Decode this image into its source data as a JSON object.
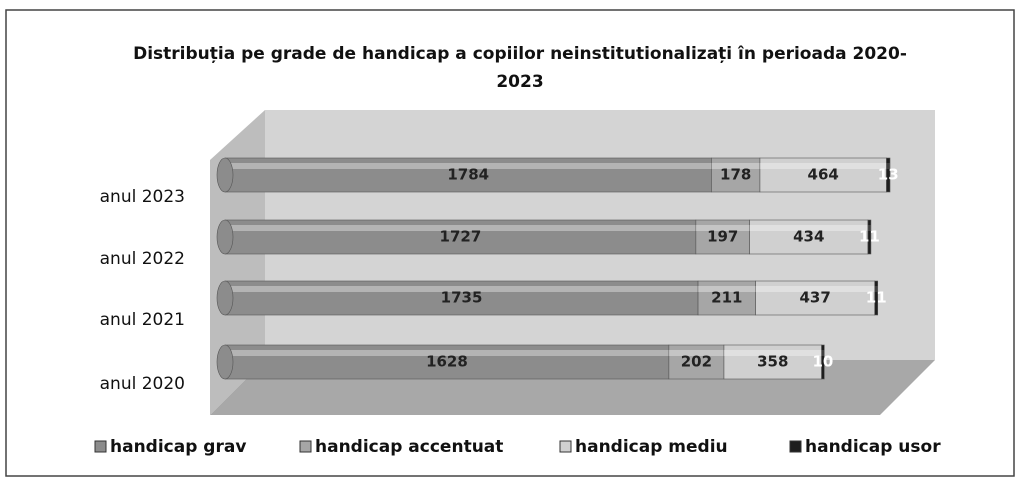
{
  "chart_data": {
    "type": "bar",
    "orientation": "horizontal",
    "stacked": true,
    "title": "Distribuția pe grade de handicap a copiilor neinstitutionalizați în perioada 2020-2023",
    "categories": [
      "anul 2023",
      "anul 2022",
      "anul 2021",
      "anul 2020"
    ],
    "series": [
      {
        "name": "handicap grav",
        "color": "#8c8c8c",
        "values": [
          1784,
          1727,
          1735,
          1628
        ]
      },
      {
        "name": "handicap accentuat",
        "color": "#a6a6a6",
        "values": [
          178,
          197,
          211,
          202
        ]
      },
      {
        "name": "handicap mediu",
        "color": "#d0d0d0",
        "values": [
          464,
          434,
          437,
          358
        ]
      },
      {
        "name": "handicap usor",
        "color": "#1e1e1e",
        "values": [
          13,
          11,
          11,
          10
        ]
      }
    ],
    "legend": "bottom"
  }
}
